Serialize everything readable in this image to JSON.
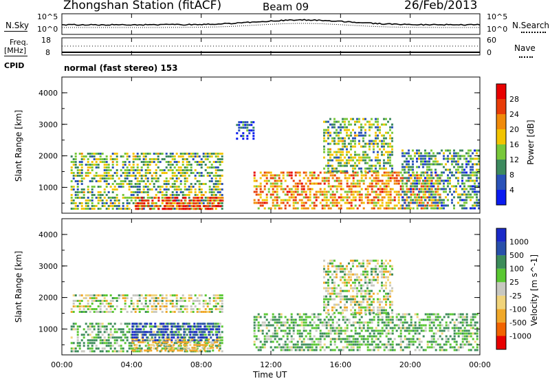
{
  "header": {
    "station": "Zhongshan Station (fitACF)",
    "beam": "Beam 09",
    "date": "26/Feb/2013"
  },
  "noise_panel": {
    "left_label": "N.Sky",
    "left_ticks": [
      "10^5",
      "10^0"
    ],
    "right_ticks": [
      "10^5",
      "10^0"
    ],
    "right_label": "N.Search"
  },
  "freq_panel": {
    "left_label_1": "Freq.",
    "left_label_2": "[MHz]",
    "left_ticks": [
      "18",
      "8"
    ],
    "right_ticks": [
      "60",
      "0"
    ],
    "right_label": "Nave"
  },
  "cpid": {
    "label": "CPID",
    "text": "normal (fast stereo) 153"
  },
  "colors": {
    "scale_palette": [
      "#0a1bf0",
      "#2a52b8",
      "#3d8a5e",
      "#78c83a",
      "#f2c400",
      "#f08a0a",
      "#e83c08",
      "#e80000"
    ],
    "velocity_palette": [
      "#e80000",
      "#f26400",
      "#f0a82a",
      "#f0d37a",
      "#c8c8c0",
      "#5ac832",
      "#3c8c5a",
      "#2850aa",
      "#1a2ac8"
    ],
    "velocity_scatter": "#2a3ab4"
  },
  "chart_data": [
    {
      "type": "heatmap",
      "name": "power",
      "ylabel": "Slant Range [km]",
      "yticks": [
        "1000",
        "2000",
        "3000",
        "4000"
      ],
      "ylim": [
        180,
        4500
      ],
      "xlim": [
        0,
        24
      ],
      "colorbar": {
        "label": "Power [dB]",
        "ticks": [
          "4",
          "8",
          "12",
          "16",
          "20",
          "24",
          "28"
        ],
        "range": [
          0,
          30
        ]
      },
      "echo_regions": [
        {
          "t": [
            0.5,
            9.2
          ],
          "r": [
            300,
            2100
          ],
          "value": 12,
          "desc": "main near-range echoes"
        },
        {
          "t": [
            4.2,
            9.2
          ],
          "r": [
            300,
            700
          ],
          "value": 26,
          "desc": "strong low-range band"
        },
        {
          "t": [
            10.0,
            11.0
          ],
          "r": [
            2500,
            3100
          ],
          "value": 6,
          "desc": "isolated high-range patch"
        },
        {
          "t": [
            11.0,
            21.7
          ],
          "r": [
            300,
            1500
          ],
          "value": 20,
          "desc": "afternoon echoes"
        },
        {
          "t": [
            15.0,
            19.0
          ],
          "r": [
            1500,
            3200
          ],
          "value": 12,
          "desc": "high-range echoes"
        },
        {
          "t": [
            19.5,
            23.9
          ],
          "r": [
            300,
            2200
          ],
          "value": 10,
          "desc": "late echoes"
        }
      ]
    },
    {
      "type": "heatmap",
      "name": "velocity",
      "ylabel": "Slant Range [km]",
      "yticks": [
        "1000",
        "2000",
        "3000",
        "4000"
      ],
      "ylim": [
        180,
        4500
      ],
      "xlim": [
        0,
        24
      ],
      "xticks": [
        "00:00",
        "04:00",
        "08:00",
        "12:00",
        "16:00",
        "20:00",
        "00:00"
      ],
      "xlabel": "Time UT",
      "colorbar": {
        "label": "Velocity [m s^-1]",
        "ticks": [
          "1000",
          "500",
          "100",
          "25",
          "-25",
          "-100",
          "-500",
          "-1000"
        ]
      },
      "echo_regions": [
        {
          "t": [
            0.5,
            9.2
          ],
          "r": [
            1500,
            2100
          ],
          "value": 0,
          "desc": "gray near-zero band"
        },
        {
          "t": [
            0.5,
            9.2
          ],
          "r": [
            300,
            1200
          ],
          "value": 100,
          "desc": "positive flow"
        },
        {
          "t": [
            4.0,
            9.0
          ],
          "r": [
            600,
            1200
          ],
          "value": 1000,
          "desc": "strong toward flow"
        },
        {
          "t": [
            4.0,
            9.0
          ],
          "r": [
            300,
            700
          ],
          "value": -100,
          "desc": "away flow"
        },
        {
          "t": [
            11.0,
            23.9
          ],
          "r": [
            300,
            1500
          ],
          "value": 100,
          "desc": "afternoon positive flow"
        },
        {
          "t": [
            15.0,
            19.0
          ],
          "r": [
            1500,
            3200
          ],
          "value": 0,
          "desc": "gray high-range band"
        }
      ]
    }
  ]
}
